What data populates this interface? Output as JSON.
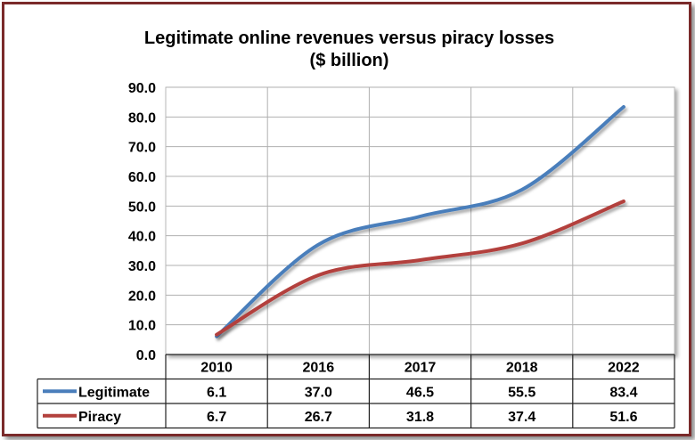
{
  "chart_data": {
    "type": "line",
    "title": "Legitimate online revenues versus piracy losses",
    "subtitle": "($ billion)",
    "categories": [
      "2010",
      "2016",
      "2017",
      "2018",
      "2022"
    ],
    "series": [
      {
        "name": "Legitimate",
        "values": [
          6.1,
          37.0,
          46.5,
          55.5,
          83.4
        ],
        "labels": [
          "6.1",
          "37.0",
          "46.5",
          "55.5",
          "83.4"
        ],
        "color": "#4a7ebb"
      },
      {
        "name": "Piracy",
        "values": [
          6.7,
          26.7,
          31.8,
          37.4,
          51.6
        ],
        "labels": [
          "6.7",
          "26.7",
          "31.8",
          "37.4",
          "51.6"
        ],
        "color": "#b3413d"
      }
    ],
    "ylim": [
      0,
      90
    ],
    "yticks": [
      "0.0",
      "10.0",
      "20.0",
      "30.0",
      "40.0",
      "50.0",
      "60.0",
      "70.0",
      "80.0",
      "90.0"
    ],
    "grid": true,
    "legend": "data-table",
    "plot_background": "#ffffff",
    "frame_color": "#7a2a2a"
  }
}
